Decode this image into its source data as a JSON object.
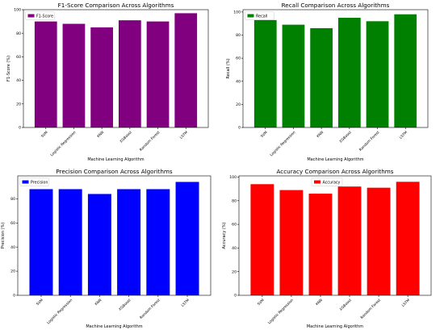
{
  "chart_data": [
    {
      "type": "bar",
      "title": "F1-Score Comparison Across Algorithms",
      "xlabel": "Machine Learning Algorithm",
      "ylabel": "F1-Score (%)",
      "categories": [
        "SVM",
        "Logistic Regression",
        "KNN",
        "XGBoost",
        "Random Forest",
        "LSTM"
      ],
      "series": [
        {
          "name": "F1-Score",
          "color": "#800080",
          "values": [
            90,
            88,
            85,
            91,
            90,
            97
          ]
        }
      ],
      "ylim": [
        0,
        100
      ],
      "yticks": [
        0,
        20,
        40,
        60,
        80,
        100
      ],
      "grid": false,
      "legend": "top-left"
    },
    {
      "type": "bar",
      "title": "Recall Comparison Across Algorithms",
      "xlabel": "Machine Learning Algorithm",
      "ylabel": "Recall (%)",
      "categories": [
        "SVM",
        "Logistic Regression",
        "KNN",
        "XGBoost",
        "Random Forest",
        "LSTM"
      ],
      "series": [
        {
          "name": "Recall",
          "color": "#008000",
          "values": [
            93,
            89,
            86,
            95,
            92,
            98
          ]
        }
      ],
      "ylim": [
        0,
        102
      ],
      "yticks": [
        0,
        20,
        40,
        60,
        80,
        100
      ],
      "grid": false,
      "legend": "top-left"
    },
    {
      "type": "bar",
      "title": "Precision Comparison Across Algorithms",
      "xlabel": "Machine Learning Algorithm",
      "ylabel": "Precision (%)",
      "categories": [
        "SVM",
        "Logistic Regression",
        "KNN",
        "XGBoost",
        "Random Forest",
        "LSTM"
      ],
      "series": [
        {
          "name": "Precision",
          "color": "#0000ff",
          "values": [
            88,
            88,
            84,
            88,
            88,
            94
          ]
        }
      ],
      "ylim": [
        0,
        99
      ],
      "yticks": [
        0,
        20,
        40,
        60,
        80
      ],
      "grid": false,
      "legend": "top-left"
    },
    {
      "type": "bar",
      "title": "Accuracy Comparison Across Algorithms",
      "xlabel": "Machine Learning Algorithm",
      "ylabel": "Accuracy (%)",
      "categories": [
        "SVM",
        "Logistic Regression",
        "KNN",
        "XGBoost",
        "Random Forest",
        "LSTM"
      ],
      "series": [
        {
          "name": "Accuracy",
          "color": "#ff0000",
          "values": [
            94,
            89,
            86,
            92,
            91,
            96
          ]
        }
      ],
      "ylim": [
        0,
        101
      ],
      "yticks": [
        0,
        20,
        40,
        60,
        80,
        100
      ],
      "grid": false,
      "legend": "top-center"
    }
  ]
}
